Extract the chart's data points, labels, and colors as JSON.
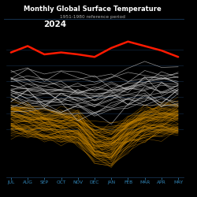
{
  "title": "Monthly Global Surface Temperature",
  "subtitle": "1951-1980 reference period",
  "year_label": "2024",
  "background_color": "#000000",
  "title_color": "#ffffff",
  "subtitle_color": "#aaaaaa",
  "year_label_color": "#ffffff",
  "grid_color": "#1a3a5c",
  "tick_color": "#3388bb",
  "tick_label_color": "#3388bb",
  "months": [
    "JUL",
    "AUG",
    "SEP",
    "OCT",
    "NOV",
    "DEC",
    "JAN",
    "FEB",
    "MAR",
    "APR",
    "MAY"
  ],
  "current_year_color": "#ff1a00",
  "current_year_linewidth": 1.8,
  "current_year_data": [
    1.45,
    1.55,
    1.42,
    1.45,
    1.42,
    1.38,
    1.52,
    1.62,
    1.55,
    1.48,
    1.38
  ],
  "white_years_color": "#cccccc",
  "white_years_alpha": 0.7,
  "white_years_linewidth": 0.5,
  "yellow_years_color": "#cc8800",
  "yellow_years_alpha": 0.55,
  "yellow_years_linewidth": 0.4,
  "ylim": [
    -0.5,
    1.9
  ],
  "white_years_count": 25,
  "yellow_years_count": 80,
  "seed": 7
}
